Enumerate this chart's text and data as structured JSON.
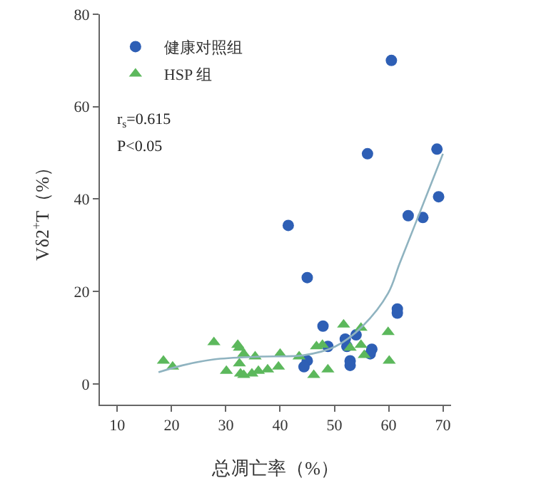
{
  "chart_data": {
    "type": "scatter",
    "xlabel": "总凋亡率（%）",
    "ylabel": "Vδ2$^{+}$T（%）",
    "xlim": [
      6.8,
      71.5
    ],
    "xticks": [
      10,
      20,
      30,
      40,
      50,
      60,
      70
    ],
    "ylim": [
      -4.5,
      80
    ],
    "yticks": [
      0,
      20,
      40,
      60,
      80
    ],
    "grid": false,
    "legend": "top left",
    "annotations": [
      "r$_{s}$=0.615",
      "P<0.05"
    ],
    "series": [
      {
        "name": "健康对照组",
        "color": "#2e5fb5",
        "marker": "circle",
        "x": [
          60.5,
          68.9,
          69.2,
          63.6,
          66.3,
          56.1,
          41.5,
          45,
          47.9,
          48.8,
          52,
          54,
          52.3,
          45,
          44.4,
          52.9,
          52.9,
          56.9,
          56.6,
          61.6,
          61.6
        ],
        "values": [
          70,
          50.8,
          40.5,
          36.4,
          36,
          49.8,
          34.3,
          23,
          12.5,
          8.1,
          9.7,
          10.6,
          8.1,
          5,
          3.7,
          5,
          4,
          7.5,
          6.5,
          16.2,
          15.3
        ]
      },
      {
        "name": "HSP 组",
        "color": "#5cb85c",
        "marker": "triangle",
        "x": [
          18.5,
          20.2,
          27.8,
          30.1,
          32.2,
          32.5,
          33.3,
          32.5,
          32.7,
          33.3,
          34.8,
          35.4,
          36,
          37.7,
          39.7,
          40,
          43.5,
          46.2,
          46.7,
          47.8,
          48.8,
          51.7,
          52.9,
          54.9,
          54.9,
          55.5,
          59.9,
          60.1
        ],
        "values": [
          5,
          3.7,
          9,
          2.8,
          8.4,
          7.8,
          6.5,
          4.4,
          2.2,
          1.9,
          2.2,
          5.9,
          2.8,
          3.1,
          3.7,
          6.5,
          5.9,
          1.9,
          8.1,
          8.4,
          3.1,
          12.8,
          7.8,
          8.4,
          12.1,
          6.2,
          11.2,
          5
        ]
      },
      {
        "type": "line",
        "color": "#8fb3c0",
        "marker": "none",
        "line_style": "solid",
        "x": [
          17.6,
          22,
          27.8,
          36.5,
          44.4,
          50.2,
          55.2,
          59.9,
          62,
          64.8,
          70
        ],
        "values": [
          2.5,
          4,
          5.3,
          5.9,
          6.2,
          8.1,
          12.5,
          19.6,
          26,
          34.3,
          49.8
        ]
      }
    ]
  }
}
